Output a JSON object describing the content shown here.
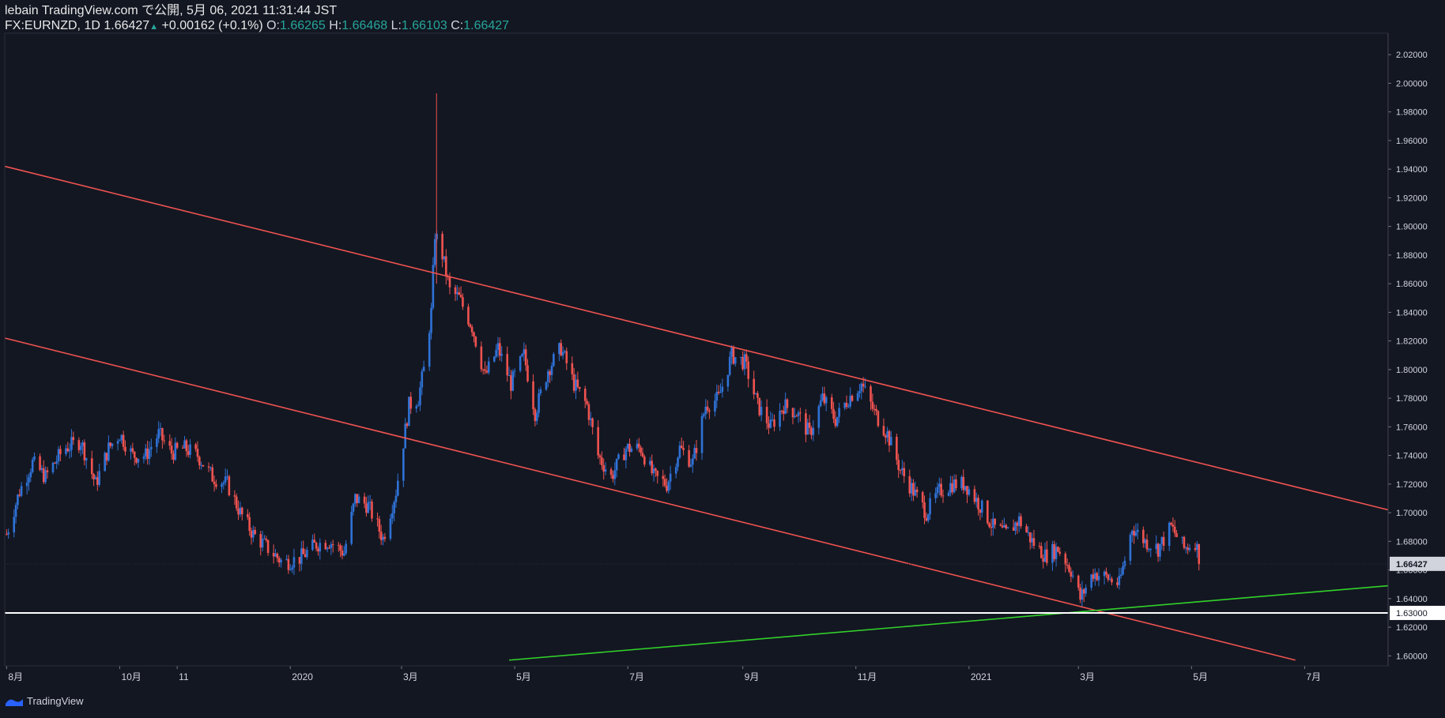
{
  "header": {
    "publisher_line": "lebain TradingView.com で公開, 5月 06, 2021 11:31:44 JST",
    "symbol": "FX:EURNZD, 1D",
    "last": "1.66427",
    "change_arrow": "▲",
    "change": "+0.00162 (+0.1%)",
    "o_label": "O:",
    "o_value": "1.66265",
    "h_label": "H:",
    "h_value": "1.66468",
    "l_label": "L:",
    "l_value": "1.66103",
    "c_label": "C:",
    "c_value": "1.66427"
  },
  "footer": {
    "brand": "TradingView",
    "logo_icon": "tradingview-logo-icon"
  },
  "colors": {
    "background": "#131722",
    "up_candle": "#2f72d6",
    "down_candle": "#ef5350",
    "channel_line": "#ef5350",
    "support_line": "#32d22a",
    "horizontal_line": "#ffffff",
    "grid_text": "#d1d4dc",
    "up_value": "#26a69a"
  },
  "chart_data": {
    "type": "candlestick",
    "symbol": "FX:EURNZD",
    "timeframe": "1D",
    "x_ticks": [
      {
        "label": "8月",
        "date": "2019-08-01"
      },
      {
        "label": "10月",
        "date": "2019-10-01"
      },
      {
        "label": "11",
        "date": "2019-11-01"
      },
      {
        "label": "2020",
        "date": "2020-01-01"
      },
      {
        "label": "3月",
        "date": "2020-03-01"
      },
      {
        "label": "5月",
        "date": "2020-05-01"
      },
      {
        "label": "7月",
        "date": "2020-07-01"
      },
      {
        "label": "9月",
        "date": "2020-09-01"
      },
      {
        "label": "11月",
        "date": "2020-11-01"
      },
      {
        "label": "2021",
        "date": "2021-01-01"
      },
      {
        "label": "3月",
        "date": "2021-03-01"
      },
      {
        "label": "5月",
        "date": "2021-05-01"
      },
      {
        "label": "7月",
        "date": "2021-07-01"
      }
    ],
    "xlim": [
      "2019-07-31",
      "2021-08-15"
    ],
    "y_ticks": [
      "1.60000",
      "1.62000",
      "1.64000",
      "1.66000",
      "1.68000",
      "1.70000",
      "1.72000",
      "1.74000",
      "1.76000",
      "1.78000",
      "1.80000",
      "1.82000",
      "1.84000",
      "1.86000",
      "1.88000",
      "1.90000",
      "1.92000",
      "1.94000",
      "1.96000",
      "1.98000",
      "2.00000",
      "2.02000"
    ],
    "ylim": [
      1.593,
      2.035
    ],
    "price_path": [
      [
        "2019-08-01",
        1.685
      ],
      [
        "2019-08-08",
        1.715
      ],
      [
        "2019-08-15",
        1.735
      ],
      [
        "2019-08-22",
        1.725
      ],
      [
        "2019-09-01",
        1.745
      ],
      [
        "2019-09-10",
        1.75
      ],
      [
        "2019-09-18",
        1.72
      ],
      [
        "2019-09-25",
        1.745
      ],
      [
        "2019-10-01",
        1.755
      ],
      [
        "2019-10-08",
        1.74
      ],
      [
        "2019-10-15",
        1.74
      ],
      [
        "2019-10-22",
        1.755
      ],
      [
        "2019-10-29",
        1.742
      ],
      [
        "2019-11-05",
        1.745
      ],
      [
        "2019-11-12",
        1.74
      ],
      [
        "2019-11-20",
        1.725
      ],
      [
        "2019-11-28",
        1.72
      ],
      [
        "2019-12-05",
        1.7
      ],
      [
        "2019-12-12",
        1.685
      ],
      [
        "2019-12-20",
        1.675
      ],
      [
        "2019-12-28",
        1.665
      ],
      [
        "2020-01-06",
        1.668
      ],
      [
        "2020-01-15",
        1.678
      ],
      [
        "2020-01-22",
        1.68
      ],
      [
        "2020-01-30",
        1.672
      ],
      [
        "2020-02-05",
        1.71
      ],
      [
        "2020-02-12",
        1.705
      ],
      [
        "2020-02-20",
        1.682
      ],
      [
        "2020-02-27",
        1.715
      ],
      [
        "2020-03-05",
        1.775
      ],
      [
        "2020-03-10",
        1.78
      ],
      [
        "2020-03-13",
        1.8
      ],
      [
        "2020-03-17",
        1.84
      ],
      [
        "2020-03-19",
        1.895
      ],
      [
        "2020-03-23",
        1.88
      ],
      [
        "2020-03-27",
        1.855
      ],
      [
        "2020-04-01",
        1.85
      ],
      [
        "2020-04-08",
        1.83
      ],
      [
        "2020-04-15",
        1.795
      ],
      [
        "2020-04-22",
        1.815
      ],
      [
        "2020-04-29",
        1.79
      ],
      [
        "2020-05-06",
        1.81
      ],
      [
        "2020-05-12",
        1.77
      ],
      [
        "2020-05-19",
        1.8
      ],
      [
        "2020-05-26",
        1.815
      ],
      [
        "2020-06-02",
        1.79
      ],
      [
        "2020-06-09",
        1.775
      ],
      [
        "2020-06-15",
        1.74
      ],
      [
        "2020-06-22",
        1.725
      ],
      [
        "2020-06-30",
        1.745
      ],
      [
        "2020-07-08",
        1.745
      ],
      [
        "2020-07-15",
        1.725
      ],
      [
        "2020-07-22",
        1.72
      ],
      [
        "2020-07-29",
        1.745
      ],
      [
        "2020-08-05",
        1.735
      ],
      [
        "2020-08-12",
        1.775
      ],
      [
        "2020-08-19",
        1.78
      ],
      [
        "2020-08-26",
        1.81
      ],
      [
        "2020-09-02",
        1.805
      ],
      [
        "2020-09-09",
        1.775
      ],
      [
        "2020-09-16",
        1.76
      ],
      [
        "2020-09-23",
        1.775
      ],
      [
        "2020-09-30",
        1.77
      ],
      [
        "2020-10-07",
        1.755
      ],
      [
        "2020-10-14",
        1.78
      ],
      [
        "2020-10-21",
        1.765
      ],
      [
        "2020-10-28",
        1.78
      ],
      [
        "2020-11-04",
        1.79
      ],
      [
        "2020-11-11",
        1.77
      ],
      [
        "2020-11-18",
        1.755
      ],
      [
        "2020-11-25",
        1.73
      ],
      [
        "2020-12-02",
        1.715
      ],
      [
        "2020-12-09",
        1.7
      ],
      [
        "2020-12-16",
        1.715
      ],
      [
        "2020-12-23",
        1.72
      ],
      [
        "2020-12-30",
        1.72
      ],
      [
        "2021-01-07",
        1.705
      ],
      [
        "2021-01-14",
        1.69
      ],
      [
        "2021-01-21",
        1.685
      ],
      [
        "2021-01-28",
        1.695
      ],
      [
        "2021-02-04",
        1.68
      ],
      [
        "2021-02-11",
        1.67
      ],
      [
        "2021-02-18",
        1.675
      ],
      [
        "2021-02-25",
        1.66
      ],
      [
        "2021-03-02",
        1.64
      ],
      [
        "2021-03-09",
        1.658
      ],
      [
        "2021-03-16",
        1.655
      ],
      [
        "2021-03-23",
        1.65
      ],
      [
        "2021-03-30",
        1.69
      ],
      [
        "2021-04-06",
        1.68
      ],
      [
        "2021-04-13",
        1.675
      ],
      [
        "2021-04-20",
        1.69
      ],
      [
        "2021-04-27",
        1.675
      ],
      [
        "2021-05-03",
        1.68
      ],
      [
        "2021-05-06",
        1.664
      ]
    ],
    "last_price": "1.66427",
    "drawings": [
      {
        "name": "upper-channel-line",
        "kind": "trendline",
        "color": "#ef5350",
        "from": [
          "2019-07-31",
          1.942
        ],
        "to": [
          "2021-08-15",
          1.702
        ]
      },
      {
        "name": "lower-channel-line",
        "kind": "trendline",
        "color": "#ef5350",
        "from": [
          "2019-07-31",
          1.822
        ],
        "to": [
          "2021-06-26",
          1.597
        ]
      },
      {
        "name": "support-trendline",
        "kind": "trendline",
        "color": "#32d22a",
        "from": [
          "2020-04-28",
          1.597
        ],
        "to": [
          "2021-08-15",
          1.649
        ]
      },
      {
        "name": "horizontal-level-1.63",
        "kind": "horizontal",
        "color": "#ffffff",
        "price": 1.63,
        "label": "1.63000"
      }
    ]
  }
}
